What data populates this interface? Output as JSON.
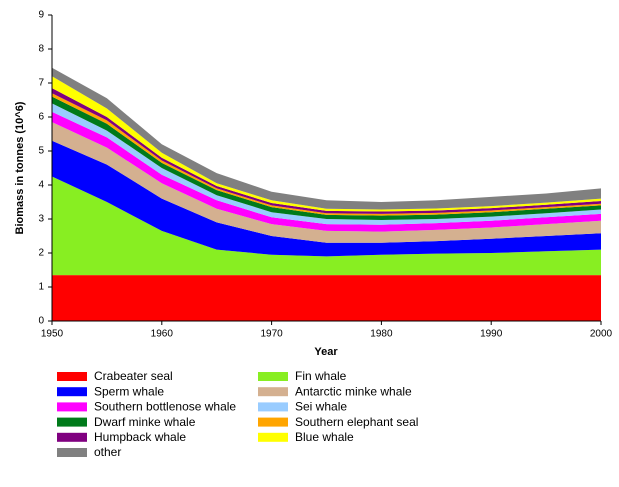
{
  "chart_data": {
    "type": "stacked_area",
    "xlabel": "Year",
    "ylabel": "Biomass in tonnes (10^6)",
    "x": [
      1950,
      1955,
      1960,
      1965,
      1970,
      1975,
      1980,
      1985,
      1990,
      1995,
      2000
    ],
    "xlim": [
      1950,
      2000
    ],
    "xticks": [
      1950,
      1960,
      1970,
      1980,
      1990,
      2000
    ],
    "ylim": [
      0,
      9
    ],
    "yticks": [
      0,
      1,
      2,
      3,
      4,
      5,
      6,
      7,
      8,
      9
    ],
    "series": [
      {
        "name": "Crabeater seal",
        "color": "#ff0000",
        "values": [
          1.35,
          1.35,
          1.35,
          1.35,
          1.35,
          1.35,
          1.35,
          1.35,
          1.35,
          1.35,
          1.35
        ]
      },
      {
        "name": "Fin whale",
        "color": "#88ee22",
        "values": [
          2.9,
          2.15,
          1.3,
          0.75,
          0.6,
          0.55,
          0.6,
          0.63,
          0.65,
          0.7,
          0.75
        ]
      },
      {
        "name": "Sperm whale",
        "color": "#0000ff",
        "values": [
          1.05,
          1.1,
          0.95,
          0.8,
          0.55,
          0.4,
          0.35,
          0.37,
          0.42,
          0.45,
          0.48
        ]
      },
      {
        "name": "Antarctic minke whale",
        "color": "#d4b090",
        "values": [
          0.55,
          0.5,
          0.45,
          0.4,
          0.35,
          0.35,
          0.33,
          0.33,
          0.33,
          0.35,
          0.37
        ]
      },
      {
        "name": "Southern bottlenose whale",
        "color": "#ff00ff",
        "values": [
          0.3,
          0.3,
          0.25,
          0.25,
          0.2,
          0.2,
          0.2,
          0.2,
          0.2,
          0.2,
          0.2
        ]
      },
      {
        "name": "Sei whale",
        "color": "#99ccff",
        "values": [
          0.25,
          0.2,
          0.2,
          0.15,
          0.15,
          0.15,
          0.14,
          0.12,
          0.12,
          0.12,
          0.13
        ]
      },
      {
        "name": "Dwarf minke whale",
        "color": "#007a1a",
        "values": [
          0.2,
          0.2,
          0.15,
          0.15,
          0.15,
          0.12,
          0.13,
          0.13,
          0.13,
          0.13,
          0.12
        ]
      },
      {
        "name": "Southern elephant seal",
        "color": "#ffa500",
        "values": [
          0.1,
          0.1,
          0.07,
          0.05,
          0.05,
          0.05,
          0.05,
          0.05,
          0.05,
          0.05,
          0.05
        ]
      },
      {
        "name": "Humpback whale",
        "color": "#800080",
        "values": [
          0.15,
          0.1,
          0.08,
          0.07,
          0.07,
          0.07,
          0.07,
          0.07,
          0.07,
          0.07,
          0.08
        ]
      },
      {
        "name": "Blue whale",
        "color": "#ffff00",
        "values": [
          0.35,
          0.25,
          0.15,
          0.08,
          0.08,
          0.06,
          0.06,
          0.06,
          0.06,
          0.06,
          0.07
        ]
      },
      {
        "name": "other",
        "color": "#808080",
        "values": [
          0.25,
          0.3,
          0.25,
          0.3,
          0.25,
          0.25,
          0.22,
          0.24,
          0.27,
          0.27,
          0.3
        ]
      }
    ]
  }
}
